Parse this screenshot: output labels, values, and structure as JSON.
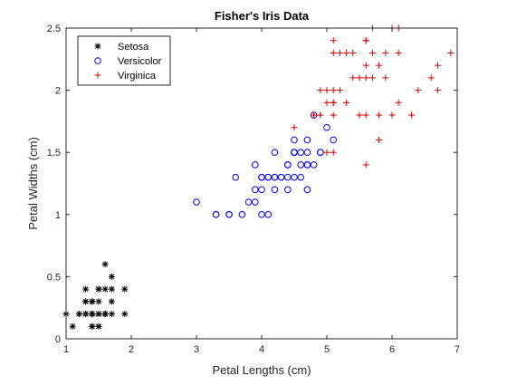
{
  "chart_data": {
    "type": "scatter",
    "title": "Fisher's Iris Data",
    "xlabel": "Petal Lengths (cm)",
    "ylabel": "Petal Widths (cm)",
    "xlim": [
      1,
      7
    ],
    "ylim": [
      0,
      2.5
    ],
    "xticks": [
      "1",
      "2",
      "3",
      "4",
      "5",
      "6",
      "7"
    ],
    "yticks": [
      "0",
      "0.5",
      "1",
      "1.5",
      "2",
      "2.5"
    ],
    "grid": false,
    "legend_position": "top-left",
    "series": [
      {
        "name": "Setosa",
        "marker": "asterisk",
        "color": "#000000",
        "points": [
          [
            1.4,
            0.2
          ],
          [
            1.4,
            0.2
          ],
          [
            1.3,
            0.2
          ],
          [
            1.5,
            0.2
          ],
          [
            1.4,
            0.2
          ],
          [
            1.7,
            0.4
          ],
          [
            1.4,
            0.3
          ],
          [
            1.5,
            0.2
          ],
          [
            1.4,
            0.2
          ],
          [
            1.5,
            0.1
          ],
          [
            1.5,
            0.2
          ],
          [
            1.6,
            0.2
          ],
          [
            1.4,
            0.1
          ],
          [
            1.1,
            0.1
          ],
          [
            1.2,
            0.2
          ],
          [
            1.5,
            0.4
          ],
          [
            1.3,
            0.4
          ],
          [
            1.4,
            0.3
          ],
          [
            1.7,
            0.3
          ],
          [
            1.5,
            0.3
          ],
          [
            1.7,
            0.2
          ],
          [
            1.5,
            0.4
          ],
          [
            1.0,
            0.2
          ],
          [
            1.7,
            0.5
          ],
          [
            1.9,
            0.2
          ],
          [
            1.6,
            0.2
          ],
          [
            1.6,
            0.4
          ],
          [
            1.5,
            0.2
          ],
          [
            1.4,
            0.2
          ],
          [
            1.6,
            0.2
          ],
          [
            1.6,
            0.2
          ],
          [
            1.5,
            0.4
          ],
          [
            1.5,
            0.1
          ],
          [
            1.4,
            0.2
          ],
          [
            1.5,
            0.2
          ],
          [
            1.2,
            0.2
          ],
          [
            1.3,
            0.2
          ],
          [
            1.4,
            0.1
          ],
          [
            1.3,
            0.2
          ],
          [
            1.5,
            0.2
          ],
          [
            1.3,
            0.3
          ],
          [
            1.3,
            0.3
          ],
          [
            1.3,
            0.2
          ],
          [
            1.6,
            0.6
          ],
          [
            1.9,
            0.4
          ],
          [
            1.4,
            0.3
          ],
          [
            1.6,
            0.2
          ],
          [
            1.4,
            0.2
          ],
          [
            1.5,
            0.2
          ],
          [
            1.4,
            0.2
          ]
        ]
      },
      {
        "name": "Versicolor",
        "marker": "circle",
        "color": "#0000ff",
        "points": [
          [
            4.7,
            1.4
          ],
          [
            4.5,
            1.5
          ],
          [
            4.9,
            1.5
          ],
          [
            4.0,
            1.3
          ],
          [
            4.6,
            1.5
          ],
          [
            4.5,
            1.3
          ],
          [
            4.7,
            1.6
          ],
          [
            3.3,
            1.0
          ],
          [
            4.6,
            1.3
          ],
          [
            3.9,
            1.4
          ],
          [
            3.5,
            1.0
          ],
          [
            4.2,
            1.5
          ],
          [
            4.0,
            1.0
          ],
          [
            4.7,
            1.4
          ],
          [
            3.6,
            1.3
          ],
          [
            4.4,
            1.4
          ],
          [
            4.5,
            1.5
          ],
          [
            4.1,
            1.0
          ],
          [
            4.5,
            1.5
          ],
          [
            3.9,
            1.1
          ],
          [
            4.8,
            1.8
          ],
          [
            4.0,
            1.3
          ],
          [
            4.9,
            1.5
          ],
          [
            4.7,
            1.2
          ],
          [
            4.3,
            1.3
          ],
          [
            4.4,
            1.4
          ],
          [
            4.8,
            1.4
          ],
          [
            5.0,
            1.7
          ],
          [
            4.5,
            1.5
          ],
          [
            3.5,
            1.0
          ],
          [
            3.8,
            1.1
          ],
          [
            3.7,
            1.0
          ],
          [
            3.9,
            1.2
          ],
          [
            5.1,
            1.6
          ],
          [
            4.5,
            1.5
          ],
          [
            4.5,
            1.6
          ],
          [
            4.7,
            1.5
          ],
          [
            4.4,
            1.3
          ],
          [
            4.1,
            1.3
          ],
          [
            4.0,
            1.3
          ],
          [
            4.4,
            1.2
          ],
          [
            4.6,
            1.4
          ],
          [
            4.0,
            1.2
          ],
          [
            3.3,
            1.0
          ],
          [
            4.2,
            1.3
          ],
          [
            4.2,
            1.2
          ],
          [
            4.2,
            1.3
          ],
          [
            4.3,
            1.3
          ],
          [
            3.0,
            1.1
          ],
          [
            4.1,
            1.3
          ]
        ]
      },
      {
        "name": "Virginica",
        "marker": "plus",
        "color": "#d00000",
        "points": [
          [
            6.0,
            2.5
          ],
          [
            5.1,
            1.9
          ],
          [
            5.9,
            2.1
          ],
          [
            5.6,
            1.8
          ],
          [
            5.8,
            2.2
          ],
          [
            6.6,
            2.1
          ],
          [
            4.5,
            1.7
          ],
          [
            6.3,
            1.8
          ],
          [
            5.8,
            1.8
          ],
          [
            6.1,
            2.5
          ],
          [
            5.1,
            2.0
          ],
          [
            5.3,
            1.9
          ],
          [
            5.5,
            2.1
          ],
          [
            5.0,
            2.0
          ],
          [
            5.1,
            2.4
          ],
          [
            5.3,
            2.3
          ],
          [
            5.5,
            1.8
          ],
          [
            6.7,
            2.2
          ],
          [
            6.9,
            2.3
          ],
          [
            5.0,
            1.5
          ],
          [
            5.7,
            2.3
          ],
          [
            4.9,
            2.0
          ],
          [
            6.7,
            2.0
          ],
          [
            4.9,
            1.8
          ],
          [
            5.7,
            2.1
          ],
          [
            6.0,
            1.8
          ],
          [
            4.8,
            1.8
          ],
          [
            4.9,
            1.8
          ],
          [
            5.6,
            2.1
          ],
          [
            5.8,
            1.6
          ],
          [
            6.1,
            1.9
          ],
          [
            6.4,
            2.0
          ],
          [
            5.6,
            2.2
          ],
          [
            5.1,
            1.5
          ],
          [
            5.6,
            1.4
          ],
          [
            6.1,
            2.3
          ],
          [
            5.6,
            2.4
          ],
          [
            5.5,
            1.8
          ],
          [
            4.8,
            1.8
          ],
          [
            5.4,
            2.1
          ],
          [
            5.6,
            2.4
          ],
          [
            5.1,
            2.3
          ],
          [
            5.1,
            1.9
          ],
          [
            5.9,
            2.3
          ],
          [
            5.7,
            2.5
          ],
          [
            5.2,
            2.3
          ],
          [
            5.0,
            1.9
          ],
          [
            5.2,
            2.0
          ],
          [
            5.4,
            2.3
          ],
          [
            5.1,
            1.8
          ]
        ]
      }
    ]
  }
}
